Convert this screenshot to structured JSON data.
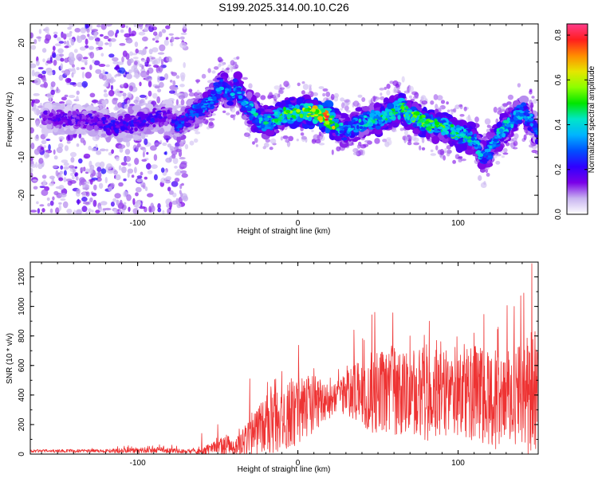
{
  "figure": {
    "title": "S199.2025.314.00.10.C26"
  },
  "chart_data": [
    {
      "type": "heatmap",
      "name": "spectrogram",
      "xlabel": "Height of straight line (km)",
      "ylabel": "Frequency (Hz)",
      "xlim": [
        -167,
        150
      ],
      "ylim": [
        -25,
        25
      ],
      "xticks": [
        -100,
        0,
        100
      ],
      "yticks": [
        -20,
        -10,
        0,
        10,
        20
      ],
      "colorbar": {
        "label": "Normalized spectral amplitude",
        "range": [
          0.0,
          0.85
        ],
        "ticks": [
          0.0,
          0.2,
          0.4,
          0.6,
          0.8
        ],
        "tick_labels": [
          "0.0",
          "0.2",
          "0.4",
          "0.6",
          "0.8"
        ],
        "colors": [
          "#ffffff",
          "#c8b4f0",
          "#7a00e8",
          "#3000ff",
          "#0050ff",
          "#00b4ff",
          "#00e6c8",
          "#00e600",
          "#8cff00",
          "#e6e600",
          "#ff8c00",
          "#ff1e1e",
          "#ff3c8c"
        ]
      },
      "ridge": {
        "x": [
          -167,
          -150,
          -130,
          -115,
          -100,
          -90,
          -80,
          -75,
          -70,
          -60,
          -52,
          -48,
          -42,
          -38,
          -34,
          -30,
          -25,
          -20,
          -10,
          0,
          10,
          15,
          20,
          25,
          30,
          40,
          50,
          60,
          65,
          70,
          80,
          90,
          100,
          110,
          115,
          120,
          125,
          130,
          135,
          140,
          145,
          150
        ],
        "y": [
          1,
          0,
          0,
          -2,
          -1,
          0,
          1,
          -2,
          0,
          3,
          6,
          9,
          6,
          9,
          4,
          3,
          0,
          -1,
          1,
          2,
          2,
          1,
          0,
          -2,
          -3,
          -1,
          0,
          2,
          3,
          1,
          -1,
          -2,
          -4,
          -5,
          -10,
          -8,
          -4,
          -2,
          0,
          2,
          0,
          -4
        ],
        "amp": [
          0.15,
          0.2,
          0.2,
          0.25,
          0.25,
          0.25,
          0.2,
          0.3,
          0.3,
          0.35,
          0.4,
          0.4,
          0.4,
          0.45,
          0.4,
          0.45,
          0.5,
          0.5,
          0.55,
          0.6,
          0.7,
          0.75,
          0.85,
          0.5,
          0.4,
          0.45,
          0.5,
          0.55,
          0.55,
          0.6,
          0.6,
          0.55,
          0.55,
          0.5,
          0.4,
          0.4,
          0.45,
          0.45,
          0.45,
          0.4,
          0.4,
          0.35
        ]
      }
    },
    {
      "type": "line",
      "name": "snr",
      "xlabel": "Height of straight line (km)",
      "ylabel": "SNR (10 * v/v)",
      "xlim": [
        -167,
        150
      ],
      "ylim": [
        0,
        1300
      ],
      "xticks": [
        -100,
        0,
        100
      ],
      "yticks": [
        0,
        200,
        400,
        600,
        800,
        1000,
        1200
      ],
      "color": "#ee3333",
      "envelope": {
        "x": [
          -167,
          -120,
          -100,
          -80,
          -70,
          -60,
          -50,
          -45,
          -40,
          -35,
          -30,
          -20,
          -10,
          0,
          10,
          20,
          25,
          30,
          40,
          50,
          60,
          70,
          80,
          90,
          100,
          110,
          120,
          130,
          140,
          145,
          150
        ],
        "baseline": [
          20,
          20,
          25,
          25,
          15,
          20,
          40,
          50,
          30,
          60,
          100,
          180,
          220,
          280,
          320,
          350,
          380,
          400,
          380,
          400,
          400,
          380,
          370,
          380,
          380,
          360,
          340,
          340,
          340,
          340,
          340
        ],
        "spread": [
          12,
          15,
          25,
          25,
          15,
          30,
          60,
          110,
          60,
          120,
          170,
          250,
          280,
          300,
          250,
          150,
          180,
          220,
          300,
          380,
          380,
          350,
          400,
          380,
          380,
          420,
          450,
          420,
          450,
          600,
          400
        ]
      },
      "peaks": [
        {
          "x": -60,
          "y": 140
        },
        {
          "x": -50,
          "y": 200
        },
        {
          "x": -30,
          "y": 510
        },
        {
          "x": -10,
          "y": 560
        },
        {
          "x": 10,
          "y": 580
        },
        {
          "x": 35,
          "y": 840
        },
        {
          "x": 48,
          "y": 960
        },
        {
          "x": 70,
          "y": 800
        },
        {
          "x": 82,
          "y": 900
        },
        {
          "x": 110,
          "y": 820
        },
        {
          "x": 125,
          "y": 860
        },
        {
          "x": 135,
          "y": 1000
        },
        {
          "x": 141,
          "y": 1090
        },
        {
          "x": 146,
          "y": 1290
        },
        {
          "x": 148,
          "y": 830
        }
      ]
    }
  ]
}
